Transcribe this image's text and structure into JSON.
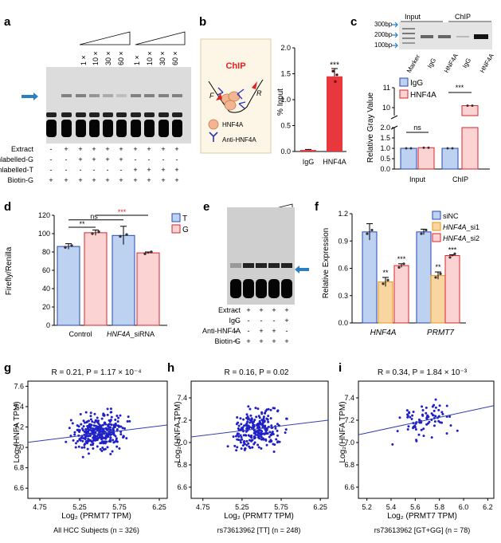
{
  "panels": {
    "a": {
      "letter": "a",
      "conc_labels": [
        "1 ×",
        "10 ×",
        "30 ×",
        "60 ×",
        "1 ×",
        "10 ×",
        "30 ×",
        "60 ×"
      ],
      "row_labels": [
        "Extract",
        "Unlabelled-G",
        "Unlabelled-T",
        "Biotin-G"
      ],
      "row_marks": [
        [
          "-",
          "+",
          "+",
          "+",
          "+",
          "+",
          "+",
          "+",
          "+",
          "+"
        ],
        [
          "-",
          "-",
          "+",
          "+",
          "+",
          "+",
          "-",
          "-",
          "-",
          "-"
        ],
        [
          "-",
          "-",
          "-",
          "-",
          "-",
          "-",
          "+",
          "+",
          "+",
          "+"
        ],
        [
          "+",
          "+",
          "+",
          "+",
          "+",
          "+",
          "+",
          "+",
          "+",
          "+"
        ]
      ]
    },
    "b": {
      "letter": "b",
      "chip_title": "ChIP",
      "f_label": "F",
      "r_label": "R",
      "legend_hnf4a": "HNF4A",
      "legend_anti": "Anti-HNF4A",
      "ylabel": "% Input",
      "yticks": [
        "0.0",
        "0.5",
        "1.0",
        "1.5",
        "2.0"
      ],
      "categories": [
        "IgG",
        "HNF4A"
      ],
      "values": [
        0.03,
        1.45
      ],
      "sig": "***",
      "bar_color": "#e8383d"
    },
    "c": {
      "letter": "c",
      "ladder": [
        "300bp",
        "200bp",
        "100bp"
      ],
      "input_label": "Input",
      "chip_label": "ChIP",
      "lanes": [
        "Marker",
        "IgG",
        "HNF4A",
        "IgG",
        "HNF4A"
      ],
      "ylabel": "Relative Gray Value",
      "yticks": [
        "0.0",
        "0.5",
        "1.0",
        "1.5",
        "2.0",
        "10",
        "11"
      ],
      "legend": [
        "IgG",
        "HNF4A"
      ],
      "groups": [
        "Input",
        "ChIP"
      ],
      "sig": [
        "ns",
        "***"
      ]
    },
    "d": {
      "letter": "d",
      "ylabel": "Firefly/Renilla",
      "yticks": [
        "0",
        "20",
        "40",
        "60",
        "80",
        "100",
        "120"
      ],
      "legend": [
        "T",
        "G"
      ],
      "sig": [
        "**",
        "ns",
        "***"
      ],
      "x_control": "Control",
      "x_sirna_gene": "HNF4A",
      "x_sirna_suffix": "_siRNA"
    },
    "e": {
      "letter": "e",
      "row_labels": [
        "Extract",
        "IgG",
        "Anti-HNF4A",
        "Biotin-G"
      ],
      "row_marks": [
        [
          "-",
          "+",
          "+",
          "+",
          "+"
        ],
        [
          "-",
          "-",
          "-",
          "-",
          "+"
        ],
        [
          "-",
          "-",
          "+",
          "+",
          "-"
        ],
        [
          "+",
          "+",
          "+",
          "+",
          "+"
        ]
      ]
    },
    "f": {
      "letter": "f",
      "ylabel": "Relative Expression",
      "yticks": [
        "0.0",
        "0.3",
        "0.6",
        "0.9",
        "1.2"
      ],
      "legend": [
        "siNC",
        "HNF4A_si1",
        "HNF4A_si2"
      ],
      "legend_gene": "HNF4A",
      "legend_suffix": [
        "_si1",
        "_si2"
      ],
      "genes": [
        "HNF4A",
        "PRMT7"
      ],
      "sig": [
        "**",
        "**",
        "***",
        "***"
      ]
    },
    "g": {
      "letter": "g",
      "stat": "R = 0.21, P = 1.17 × 10⁻⁴",
      "xlabel": "Log₂ (PRMT7 TPM)",
      "ylabel": "Log₂(HNFA TPM)",
      "xticks": [
        "4.75",
        "5.25",
        "5.75",
        "6.25"
      ],
      "yticks": [
        "6.6",
        "6.8",
        "7.0",
        "7.2",
        "7.4",
        "7.6"
      ],
      "subtitle": "All HCC Subjects (n = 326)"
    },
    "h": {
      "letter": "h",
      "stat": "R = 0.16, P = 0.02",
      "xlabel": "Log₂ (PRMT7 TPM)",
      "ylabel": "Log₂(HNFA TPM)",
      "xticks": [
        "4.75",
        "5.25",
        "5.75",
        "6.25"
      ],
      "yticks": [
        "6.6",
        "6.8",
        "7.0",
        "7.2",
        "7.4"
      ],
      "subtitle": "rs73613962 [TT] (n = 248)"
    },
    "i": {
      "letter": "i",
      "stat": "R = 0.34, P = 1.84 × 10⁻³",
      "xlabel": "Log₂ (PRMT7 TPM)",
      "ylabel": "Log₂(HNFA TPM)",
      "xticks": [
        "5.2",
        "5.4",
        "5.6",
        "5.8",
        "6.0",
        "6.2"
      ],
      "yticks": [
        "6.6",
        "6.8",
        "7.0",
        "7.2",
        "7.4"
      ],
      "subtitle": "rs73613962 [GT+GG] (n = 78)"
    }
  },
  "colors": {
    "blue_bar": "#bcd2f0",
    "blue_edge": "#2a44b4",
    "red_bar": "#fbd3d3",
    "red_edge": "#d9262b",
    "orange_bar": "#f9d69f",
    "orange_edge": "#e8931c",
    "scatter": "#2020c8",
    "arrow": "#2a7fc0"
  },
  "chart_data": [
    {
      "panel": "b",
      "type": "bar",
      "categories": [
        "IgG",
        "HNF4A"
      ],
      "values": [
        0.03,
        1.45
      ],
      "errors": [
        0.01,
        0.15
      ],
      "ylabel": "% Input",
      "ylim": [
        0,
        2.0
      ]
    },
    {
      "panel": "c",
      "type": "bar",
      "categories": [
        "Input",
        "ChIP"
      ],
      "series": [
        {
          "name": "IgG",
          "values": [
            1.0,
            1.0
          ]
        },
        {
          "name": "HNF4A",
          "values": [
            1.03,
            10.1
          ]
        }
      ],
      "ylabel": "Relative Gray Value",
      "ylim": [
        0,
        11
      ],
      "axis_break": [
        2.0,
        9.6
      ]
    },
    {
      "panel": "d",
      "type": "bar",
      "categories": [
        "Control",
        "HNF4A_siRNA"
      ],
      "series": [
        {
          "name": "T",
          "values": [
            86,
            98
          ]
        },
        {
          "name": "G",
          "values": [
            101,
            79
          ]
        }
      ],
      "errors": [
        [
          3,
          10
        ],
        [
          3,
          1
        ]
      ],
      "ylabel": "Firefly/Renilla",
      "ylim": [
        0,
        120
      ]
    },
    {
      "panel": "f",
      "type": "bar",
      "categories": [
        "HNF4A",
        "PRMT7"
      ],
      "series": [
        {
          "name": "siNC",
          "values": [
            1.0,
            1.0
          ]
        },
        {
          "name": "HNF4A_si1",
          "values": [
            0.45,
            0.52
          ]
        },
        {
          "name": "HNF4A_si2",
          "values": [
            0.63,
            0.74
          ]
        }
      ],
      "ylabel": "Relative Expression",
      "ylim": [
        0,
        1.2
      ]
    },
    {
      "panel": "g",
      "type": "scatter",
      "n": 326,
      "r": 0.21,
      "xlim": [
        4.6,
        6.35
      ],
      "ylim": [
        6.5,
        7.65
      ],
      "trend": {
        "x": [
          4.6,
          6.35
        ],
        "y": [
          7.05,
          7.22
        ]
      }
    },
    {
      "panel": "h",
      "type": "scatter",
      "n": 248,
      "r": 0.16,
      "xlim": [
        4.6,
        6.35
      ],
      "ylim": [
        6.5,
        7.55
      ],
      "trend": {
        "x": [
          4.6,
          6.35
        ],
        "y": [
          7.05,
          7.2
        ]
      }
    },
    {
      "panel": "i",
      "type": "scatter",
      "n": 78,
      "r": 0.34,
      "xlim": [
        5.13,
        6.25
      ],
      "ylim": [
        6.5,
        7.55
      ],
      "trend": {
        "x": [
          5.13,
          6.25
        ],
        "y": [
          7.07,
          7.33
        ]
      }
    }
  ]
}
